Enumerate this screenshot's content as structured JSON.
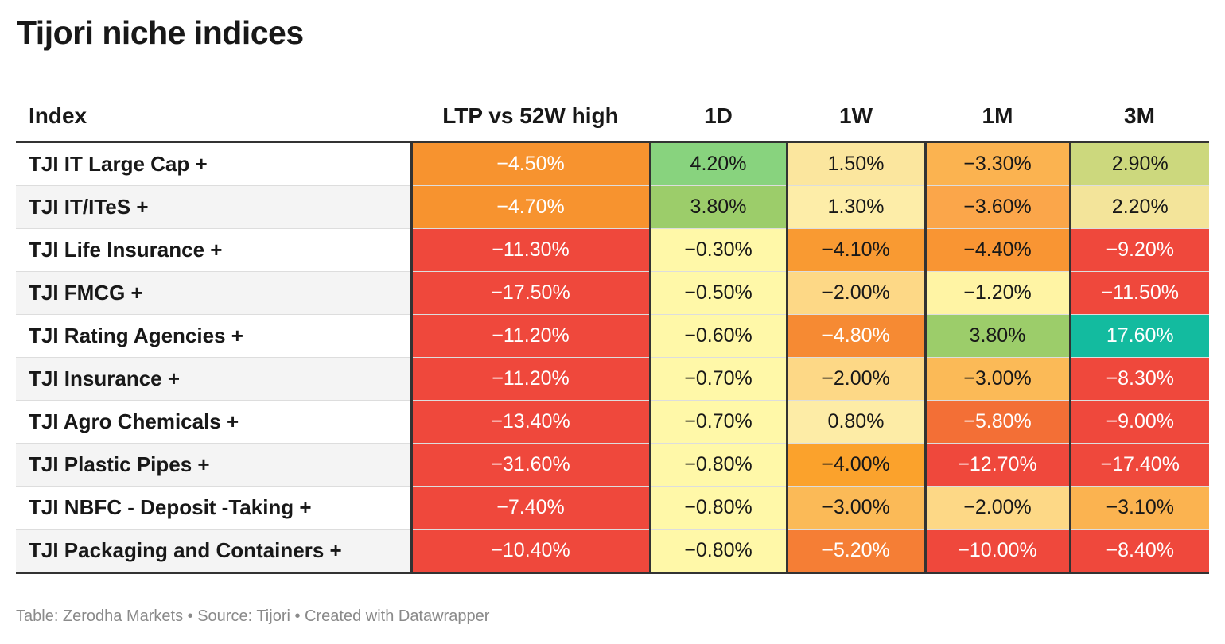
{
  "title": "Tijori niche indices",
  "footer": "Table: Zerodha Markets • Source: Tijori • Created with Datawrapper",
  "chart_data": {
    "type": "table",
    "columns": [
      "Index",
      "LTP vs 52W high",
      "1D",
      "1W",
      "1M",
      "3M"
    ],
    "rows": [
      {
        "index": "TJI IT Large Cap +",
        "values": [
          "−4.50%",
          "4.20%",
          "1.50%",
          "−3.30%",
          "2.90%"
        ],
        "colors": [
          "#f7932f",
          "#88d37e",
          "#fbe69e",
          "#fbb350",
          "#ccd87d"
        ]
      },
      {
        "index": "TJI IT/ITeS +",
        "values": [
          "−4.70%",
          "3.80%",
          "1.30%",
          "−3.60%",
          "2.20%"
        ],
        "colors": [
          "#f7932f",
          "#9ccd6a",
          "#fdeda8",
          "#fba64a",
          "#f3e49a"
        ]
      },
      {
        "index": "TJI Life Insurance +",
        "values": [
          "−11.30%",
          "−0.30%",
          "−4.10%",
          "−4.40%",
          "−9.20%"
        ],
        "colors": [
          "#ef483c",
          "#fff8a8",
          "#f99a32",
          "#f99533",
          "#ef483c"
        ]
      },
      {
        "index": "TJI FMCG +",
        "values": [
          "−17.50%",
          "−0.50%",
          "−2.00%",
          "−1.20%",
          "−11.50%"
        ],
        "colors": [
          "#ef483c",
          "#fff8a8",
          "#fdd886",
          "#fff4a4",
          "#ef483c"
        ]
      },
      {
        "index": "TJI Rating Agencies +",
        "values": [
          "−11.20%",
          "−0.60%",
          "−4.80%",
          "3.80%",
          "17.60%"
        ],
        "colors": [
          "#ef483c",
          "#fff8a8",
          "#f68a33",
          "#9ccd6a",
          "#13bb9f"
        ]
      },
      {
        "index": "TJI Insurance +",
        "values": [
          "−11.20%",
          "−0.70%",
          "−2.00%",
          "−3.00%",
          "−8.30%"
        ],
        "colors": [
          "#ef483c",
          "#fff8a8",
          "#fdd886",
          "#fbba57",
          "#ef483c"
        ]
      },
      {
        "index": "TJI Agro Chemicals +",
        "values": [
          "−13.40%",
          "−0.70%",
          "0.80%",
          "−5.80%",
          "−9.00%"
        ],
        "colors": [
          "#ef483c",
          "#fff8a8",
          "#fdeca6",
          "#f36f36",
          "#ef483c"
        ]
      },
      {
        "index": "TJI Plastic Pipes +",
        "values": [
          "−31.60%",
          "−0.80%",
          "−4.00%",
          "−12.70%",
          "−17.40%"
        ],
        "colors": [
          "#ef483c",
          "#fff8a8",
          "#fba22c",
          "#ef483c",
          "#ef483c"
        ]
      },
      {
        "index": "TJI NBFC - Deposit -Taking +",
        "values": [
          "−7.40%",
          "−0.80%",
          "−3.00%",
          "−2.00%",
          "−3.10%"
        ],
        "colors": [
          "#ef483c",
          "#fff8a8",
          "#fbba57",
          "#fdd886",
          "#fbb350"
        ]
      },
      {
        "index": "TJI Packaging and Containers +",
        "values": [
          "−10.40%",
          "−0.80%",
          "−5.20%",
          "−10.00%",
          "−8.40%"
        ],
        "colors": [
          "#ef483c",
          "#fff8a8",
          "#f57e35",
          "#ef483c",
          "#ef483c"
        ]
      }
    ],
    "text_colors": {
      "dark": "#181818",
      "light": "#ffffff"
    },
    "light_text_backgrounds": [
      "#ef483c",
      "#f68a33",
      "#f7932f",
      "#f57e35",
      "#f36f36",
      "#13bb9f"
    ]
  }
}
